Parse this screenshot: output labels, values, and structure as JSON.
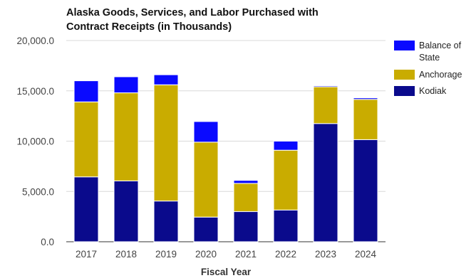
{
  "chart_data": {
    "type": "bar",
    "stacked": true,
    "title": [
      "Alaska Goods, Services, and Labor Purchased with",
      "Contract Receipts (in Thousands)"
    ],
    "xlabel": "Fiscal Year",
    "ylabel": "",
    "ylim": [
      0,
      20000
    ],
    "yticks": [
      0,
      5000,
      10000,
      15000,
      20000
    ],
    "ytick_labels": [
      "0.0",
      "5,000.0",
      "10,000.0",
      "15,000.0",
      "20,000.0"
    ],
    "grid": true,
    "legend_position": "right",
    "categories": [
      "2017",
      "2018",
      "2019",
      "2020",
      "2021",
      "2022",
      "2023",
      "2024"
    ],
    "series": [
      {
        "name": "Kodiak",
        "color": "#0a0a8c",
        "values": [
          6450,
          6050,
          4050,
          2450,
          3000,
          3150,
          11750,
          10150
        ]
      },
      {
        "name": "Anchorage",
        "color": "#c9ac00",
        "values": [
          7450,
          8750,
          11550,
          7450,
          2800,
          5950,
          3650,
          4000
        ]
      },
      {
        "name": "Balance of State",
        "color": "#0a0aff",
        "values": [
          2100,
          1600,
          1000,
          2050,
          300,
          900,
          100,
          150
        ]
      }
    ],
    "legend_order": [
      "Balance of State",
      "Anchorage",
      "Kodiak"
    ],
    "legend_labels": {
      "Balance of State": [
        "Balance of",
        "State"
      ],
      "Anchorage": [
        "Anchorage"
      ],
      "Kodiak": [
        "Kodiak"
      ]
    }
  }
}
